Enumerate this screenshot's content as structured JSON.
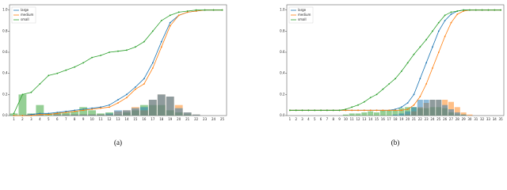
{
  "chart_data": [
    {
      "type": "line",
      "caption": "(a)",
      "categories": [
        "1",
        "2",
        "3",
        "4",
        "5",
        "6",
        "7",
        "8",
        "9",
        "10",
        "11",
        "12",
        "13",
        "14",
        "15",
        "16",
        "17",
        "18",
        "19",
        "20",
        "21",
        "22",
        "23",
        "24",
        "25"
      ],
      "ylim": [
        0,
        1.05
      ],
      "yticks": [
        {
          "value": 0,
          "label": "0.0"
        },
        {
          "value": 0.2,
          "label": "0.2"
        },
        {
          "value": 0.4,
          "label": "0.4"
        },
        {
          "value": 0.6,
          "label": "0.6"
        },
        {
          "value": 0.8,
          "label": "0.8"
        },
        {
          "value": 1,
          "label": "1.0"
        }
      ],
      "legend": "upper left",
      "series": [
        {
          "name": "large",
          "color": "#1f77b4",
          "values": [
            0,
            0,
            0.01,
            0.02,
            0.02,
            0.03,
            0.04,
            0.05,
            0.06,
            0.07,
            0.08,
            0.1,
            0.15,
            0.2,
            0.27,
            0.35,
            0.5,
            0.7,
            0.88,
            0.95,
            0.98,
            0.99,
            1,
            1,
            1
          ]
        },
        {
          "name": "medium",
          "color": "#ff7f0e",
          "values": [
            0,
            0,
            0,
            0.01,
            0.01,
            0.02,
            0.03,
            0.04,
            0.05,
            0.06,
            0.07,
            0.08,
            0.12,
            0.17,
            0.25,
            0.3,
            0.45,
            0.65,
            0.85,
            0.95,
            0.98,
            0.99,
            1,
            1,
            1
          ]
        },
        {
          "name": "small",
          "color": "#2ca02c",
          "values": [
            0.02,
            0.2,
            0.22,
            0.3,
            0.38,
            0.4,
            0.43,
            0.46,
            0.5,
            0.55,
            0.57,
            0.6,
            0.61,
            0.62,
            0.65,
            0.7,
            0.8,
            0.9,
            0.95,
            0.98,
            0.99,
            1,
            1,
            1,
            1
          ]
        }
      ],
      "bar_series": [
        {
          "color": "#2ca02c",
          "values": [
            0.02,
            0.2,
            0.02,
            0.1,
            0.02,
            0.03,
            0.03,
            0.04,
            0.08,
            0.05,
            0.02,
            0.03,
            0.01,
            0.03,
            0.05,
            0.1,
            0.1,
            0.1,
            0.05,
            0.03,
            0.01,
            0,
            0,
            0,
            0
          ]
        },
        {
          "color": "#ff7f0e",
          "values": [
            0,
            0,
            0.01,
            0.01,
            0,
            0.01,
            0.01,
            0.01,
            0.01,
            0.01,
            0.01,
            0.01,
            0.04,
            0.05,
            0.08,
            0.05,
            0.15,
            0.2,
            0.18,
            0.1,
            0.03,
            0.01,
            0,
            0,
            0
          ]
        },
        {
          "color": "#1f77b4",
          "values": [
            0,
            0,
            0.01,
            0.01,
            0,
            0.01,
            0.01,
            0.01,
            0.01,
            0.01,
            0.01,
            0.02,
            0.05,
            0.05,
            0.07,
            0.08,
            0.15,
            0.2,
            0.18,
            0.07,
            0.03,
            0.01,
            0,
            0,
            0
          ]
        }
      ]
    },
    {
      "type": "line",
      "caption": "(b)",
      "categories": [
        "1",
        "2",
        "3",
        "4",
        "5",
        "6",
        "7",
        "8",
        "9",
        "10",
        "11",
        "12",
        "13",
        "14",
        "15",
        "16",
        "17",
        "18",
        "19",
        "20",
        "21",
        "22",
        "23",
        "24",
        "25",
        "26",
        "27",
        "28",
        "29",
        "30",
        "31",
        "32",
        "33",
        "34",
        "35"
      ],
      "ylim": [
        0,
        1.05
      ],
      "yticks": [
        {
          "value": 0,
          "label": "0.0"
        },
        {
          "value": 0.2,
          "label": "0.2"
        },
        {
          "value": 0.4,
          "label": "0.4"
        },
        {
          "value": 0.6,
          "label": "0.6"
        },
        {
          "value": 0.8,
          "label": "0.8"
        },
        {
          "value": 1,
          "label": "1.0"
        }
      ],
      "legend": "upper left",
      "series": [
        {
          "name": "large",
          "color": "#1f77b4",
          "values": [
            0.05,
            0.05,
            0.05,
            0.05,
            0.05,
            0.05,
            0.05,
            0.05,
            0.05,
            0.05,
            0.05,
            0.05,
            0.05,
            0.05,
            0.05,
            0.05,
            0.05,
            0.06,
            0.08,
            0.12,
            0.2,
            0.35,
            0.5,
            0.65,
            0.8,
            0.9,
            0.96,
            0.99,
            1,
            1,
            1,
            1,
            1,
            1,
            1
          ]
        },
        {
          "name": "medium",
          "color": "#ff7f0e",
          "values": [
            0.05,
            0.05,
            0.05,
            0.05,
            0.05,
            0.05,
            0.05,
            0.05,
            0.05,
            0.05,
            0.05,
            0.05,
            0.05,
            0.05,
            0.05,
            0.05,
            0.05,
            0.05,
            0.05,
            0.06,
            0.1,
            0.18,
            0.3,
            0.45,
            0.6,
            0.75,
            0.88,
            0.96,
            0.99,
            1,
            1,
            1,
            1,
            1,
            1
          ]
        },
        {
          "name": "small",
          "color": "#2ca02c",
          "values": [
            0.05,
            0.05,
            0.05,
            0.05,
            0.05,
            0.05,
            0.05,
            0.05,
            0.05,
            0.06,
            0.08,
            0.1,
            0.13,
            0.17,
            0.2,
            0.25,
            0.3,
            0.35,
            0.42,
            0.5,
            0.58,
            0.65,
            0.72,
            0.8,
            0.88,
            0.95,
            0.98,
            0.99,
            1,
            1,
            1,
            1,
            1,
            1,
            1
          ]
        }
      ],
      "bar_series": [
        {
          "color": "#2ca02c",
          "values": [
            0,
            0,
            0,
            0,
            0,
            0,
            0,
            0,
            0,
            0.01,
            0.02,
            0.02,
            0.03,
            0.04,
            0.03,
            0.05,
            0.05,
            0.05,
            0.07,
            0.08,
            0.08,
            0.07,
            0.07,
            0.08,
            0.08,
            0.07,
            0.03,
            0.01,
            0.01,
            0,
            0,
            0,
            0,
            0,
            0
          ]
        },
        {
          "color": "#ff7f0e",
          "values": [
            0,
            0,
            0,
            0,
            0,
            0,
            0,
            0,
            0,
            0,
            0,
            0,
            0,
            0,
            0,
            0,
            0,
            0,
            0,
            0.01,
            0.04,
            0.08,
            0.12,
            0.15,
            0.15,
            0.15,
            0.13,
            0.08,
            0.03,
            0.01,
            0,
            0,
            0,
            0,
            0
          ]
        },
        {
          "color": "#1f77b4",
          "values": [
            0,
            0,
            0,
            0,
            0,
            0,
            0,
            0,
            0,
            0,
            0,
            0,
            0,
            0,
            0,
            0,
            0,
            0.01,
            0.02,
            0.04,
            0.08,
            0.15,
            0.15,
            0.15,
            0.15,
            0.1,
            0.06,
            0.03,
            0.01,
            0,
            0,
            0,
            0,
            0,
            0
          ]
        }
      ]
    }
  ]
}
